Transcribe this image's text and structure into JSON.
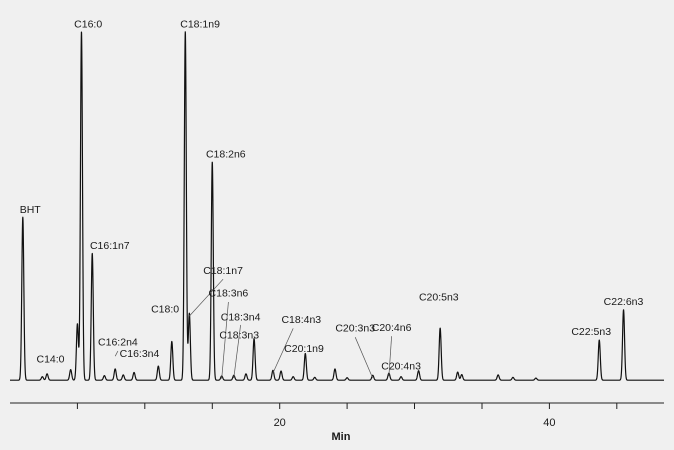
{
  "chart_data": {
    "type": "line",
    "title": "",
    "xlabel": "Min",
    "ylabel": "",
    "xlim": [
      0,
      48.5
    ],
    "ylim": [
      0,
      100
    ],
    "xticks": [
      5,
      10,
      15,
      20,
      25,
      30,
      35,
      40,
      45
    ],
    "xtick_labels": [
      "",
      "",
      "",
      "20",
      "",
      "",
      "",
      "40",
      ""
    ],
    "grid": false,
    "baseline": 0.8,
    "line_color": "#111111",
    "peak_width": 0.075,
    "peaks": [
      {
        "t": 0.95,
        "h": 46.3,
        "name": "BHT",
        "label_t": 1.5,
        "label_h": 48.3
      },
      {
        "t": 2.4,
        "h": 1.0,
        "name": "C14:0",
        "label_t": 3.0,
        "label_h": 5.8,
        "leader": false
      },
      {
        "t": 2.75,
        "h": 1.8
      },
      {
        "t": 4.5,
        "h": 3.0
      },
      {
        "t": 5.0,
        "h": 16.0
      },
      {
        "t": 5.3,
        "h": 99.0,
        "name": "C16:0",
        "label_t": 5.8,
        "label_h": 101.0
      },
      {
        "t": 6.1,
        "h": 36.0,
        "name": "C16:1n7",
        "label_t": 7.4,
        "label_h": 38.0
      },
      {
        "t": 7.0,
        "h": 1.3
      },
      {
        "t": 7.8,
        "h": 3.2,
        "name": "C16:2n4",
        "label_t": 8.0,
        "label_h": 10.6,
        "leader": true,
        "leader_to_h": 7.6
      },
      {
        "t": 8.4,
        "h": 1.5
      },
      {
        "t": 9.2,
        "h": 2.2,
        "name": "C16:3n4",
        "label_t": 9.6,
        "label_h": 7.4,
        "leader": false
      },
      {
        "t": 11.0,
        "h": 4.0
      },
      {
        "t": 12.0,
        "h": 11.0,
        "name": "C18:0",
        "label_t": 11.5,
        "label_h": 20.0
      },
      {
        "t": 13.0,
        "h": 99.0,
        "name": "C18:1n9",
        "label_t": 14.1,
        "label_h": 101.0
      },
      {
        "t": 13.3,
        "h": 19.0
      },
      {
        "t": 15.0,
        "h": 62.0,
        "name": "C18:2n6",
        "label_t": 16.0,
        "label_h": 64.0
      },
      {
        "t": 15.7,
        "h": 1.2
      },
      {
        "t": 16.6,
        "h": 1.4
      },
      {
        "t": 17.5,
        "h": 1.8
      },
      {
        "t": 18.1,
        "h": 11.8
      },
      {
        "t": 19.5,
        "h": 2.8
      },
      {
        "t": 20.1,
        "h": 2.6
      },
      {
        "t": 21.0,
        "h": 1.0
      },
      {
        "t": 21.9,
        "h": 7.6
      },
      {
        "t": 22.6,
        "h": 0.8
      },
      {
        "t": 24.1,
        "h": 3.2
      },
      {
        "t": 25.0,
        "h": 0.7
      },
      {
        "t": 26.9,
        "h": 1.4
      },
      {
        "t": 28.1,
        "h": 2.0
      },
      {
        "t": 29.0,
        "h": 1.0
      },
      {
        "t": 30.3,
        "h": 2.7
      },
      {
        "t": 31.9,
        "h": 14.8
      },
      {
        "t": 33.2,
        "h": 2.3
      },
      {
        "t": 33.5,
        "h": 1.6
      },
      {
        "t": 36.2,
        "h": 1.5
      },
      {
        "t": 37.3,
        "h": 0.8
      },
      {
        "t": 39.0,
        "h": 0.6
      },
      {
        "t": 43.7,
        "h": 11.4
      },
      {
        "t": 45.5,
        "h": 20.0
      }
    ],
    "annotations": [
      {
        "text": "C18:1n7",
        "label_t": 15.8,
        "label_h": 31.0,
        "line": [
          [
            15.8,
            29.5
          ],
          [
            13.3,
            19.0
          ]
        ]
      },
      {
        "text": "C18:3n6",
        "label_t": 16.2,
        "label_h": 24.6,
        "line": [
          [
            16.2,
            23.0
          ],
          [
            15.7,
            1.2
          ]
        ]
      },
      {
        "text": "C18:3n4",
        "label_t": 17.1,
        "label_h": 17.8,
        "line": [
          [
            17.1,
            16.5
          ],
          [
            16.6,
            1.4
          ]
        ]
      },
      {
        "text": "C18:3n3",
        "label_t": 17.0,
        "label_h": 12.6
      },
      {
        "text": "C18:4n3",
        "label_t": 21.6,
        "label_h": 17.0,
        "line": [
          [
            21.0,
            15.5
          ],
          [
            19.5,
            2.8
          ]
        ]
      },
      {
        "text": "C20:1n9",
        "label_t": 21.8,
        "label_h": 8.8
      },
      {
        "text": "C20:3n3",
        "label_t": 25.6,
        "label_h": 14.6,
        "line": [
          [
            25.6,
            13.0
          ],
          [
            26.9,
            1.4
          ]
        ]
      },
      {
        "text": "C20:4n6",
        "label_t": 28.3,
        "label_h": 14.8,
        "line": [
          [
            28.3,
            13.3
          ],
          [
            28.1,
            2.0
          ]
        ]
      },
      {
        "text": "C20:4n3",
        "label_t": 29.0,
        "label_h": 3.8
      },
      {
        "text": "C20:5n3",
        "label_t": 31.8,
        "label_h": 23.5
      },
      {
        "text": "C22:5n3",
        "label_t": 43.1,
        "label_h": 13.6
      },
      {
        "text": "C22:6n3",
        "label_t": 45.5,
        "label_h": 22.2
      }
    ]
  }
}
